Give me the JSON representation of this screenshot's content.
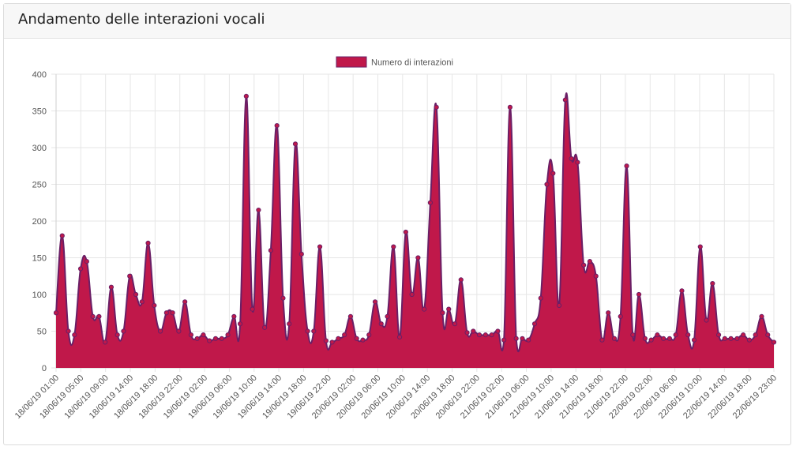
{
  "panel": {
    "title": "Andamento delle interazioni vocali"
  },
  "colors": {
    "fill": "#c0184a",
    "line": "#6a1f66",
    "grid": "#e6e6e6"
  },
  "chart_data": {
    "type": "area",
    "title": "",
    "xlabel": "",
    "ylabel": "",
    "ylim": [
      0,
      400
    ],
    "y_ticks": [
      0,
      50,
      100,
      150,
      200,
      250,
      300,
      350,
      400
    ],
    "grid": true,
    "legend_position": "top-center",
    "x_tick_labels": [
      "18/06/19 01:00",
      "18/06/19 05:00",
      "18/06/19 09:00",
      "18/06/19 14:00",
      "18/06/19 18:00",
      "18/06/19 22:00",
      "19/06/19 02:00",
      "19/06/19 06:00",
      "19/06/19 10:00",
      "19/06/19 14:00",
      "19/06/19 18:00",
      "19/06/19 22:00",
      "20/06/19 02:00",
      "20/06/19 06:00",
      "20/06/19 10:00",
      "20/06/19 14:00",
      "20/06/19 18:00",
      "20/06/19 22:00",
      "21/06/19 02:00",
      "21/06/19 06:00",
      "21/06/19 10:00",
      "21/06/19 14:00",
      "21/06/19 18:00",
      "21/06/19 22:00",
      "22/06/19 02:00",
      "22/06/19 06:00",
      "22/06/19 10:00",
      "22/06/19 14:00",
      "22/06/19 18:00",
      "22/06/19 23:00"
    ],
    "series": [
      {
        "name": "Numero di interazioni",
        "values": [
          75,
          180,
          50,
          45,
          135,
          145,
          70,
          70,
          35,
          110,
          45,
          50,
          125,
          100,
          90,
          170,
          85,
          50,
          75,
          75,
          50,
          90,
          45,
          40,
          45,
          37,
          40,
          40,
          45,
          70,
          60,
          370,
          80,
          215,
          55,
          160,
          330,
          95,
          60,
          305,
          155,
          50,
          50,
          165,
          37,
          35,
          40,
          45,
          70,
          40,
          38,
          45,
          90,
          60,
          70,
          165,
          42,
          185,
          100,
          150,
          80,
          225,
          355,
          75,
          80,
          60,
          120,
          48,
          50,
          45,
          45,
          45,
          50,
          38,
          355,
          40,
          40,
          38,
          60,
          95,
          250,
          265,
          85,
          365,
          285,
          280,
          140,
          145,
          125,
          38,
          75,
          40,
          70,
          275,
          45,
          100,
          40,
          38,
          45,
          40,
          40,
          45,
          105,
          45,
          38,
          165,
          65,
          115,
          45,
          40,
          40,
          40,
          45,
          38,
          45,
          70,
          45,
          35
        ]
      }
    ]
  }
}
